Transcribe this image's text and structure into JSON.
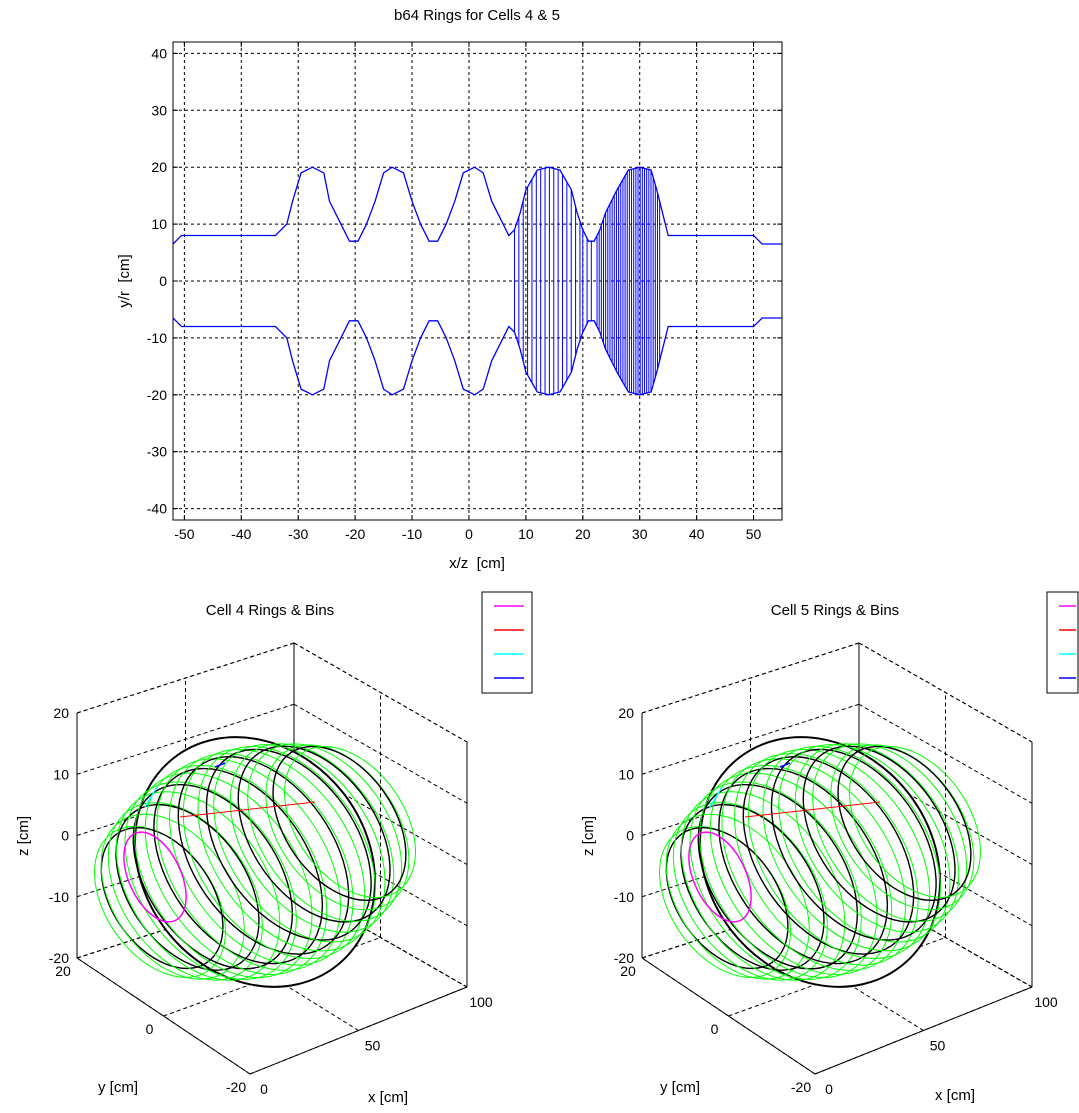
{
  "chart_data": [
    {
      "type": "line",
      "title": "b64 Rings for Cells 4 & 5",
      "xlabel": "x/z  [cm]",
      "ylabel": "y/r  [cm]",
      "xlim": [
        -52,
        55
      ],
      "ylim": [
        -42,
        42
      ],
      "grid": true,
      "xticks": [
        -50,
        -40,
        -30,
        -20,
        -10,
        0,
        10,
        20,
        30,
        40,
        50
      ],
      "yticks": [
        -40,
        -30,
        -20,
        -10,
        0,
        10,
        20,
        30,
        40
      ],
      "line_color": "#0000ff",
      "series": [
        {
          "x": [
            -52,
            -50.5,
            -34,
            -32,
            -31,
            -29.5,
            -27.5,
            -25.5,
            -24.5,
            -22.5,
            -21,
            -19.5,
            -18,
            -16.5,
            -15,
            -13.5,
            -11.5,
            -10,
            -8.5,
            -7,
            -5.5,
            -4,
            -2.5,
            -1,
            1,
            2.5,
            4,
            6,
            7,
            8,
            9,
            10,
            12,
            14,
            16,
            18,
            19,
            20,
            21,
            22,
            23,
            24,
            26,
            28,
            30,
            32,
            33,
            34,
            35,
            50,
            51.5,
            55
          ],
          "y": [
            6.5,
            8,
            8,
            10,
            14,
            19,
            20,
            19,
            14,
            10,
            7,
            7,
            10,
            14,
            19,
            20,
            19,
            14,
            10,
            7,
            7,
            10,
            14,
            19,
            20,
            19,
            14,
            10,
            8,
            9,
            12,
            16,
            19.5,
            20,
            19.5,
            16,
            12,
            9,
            7,
            7,
            9,
            12,
            16,
            19.5,
            20,
            19.5,
            16,
            12,
            8,
            8,
            6.5,
            6.5
          ]
        }
      ],
      "ring_hatching": [
        {
          "x_from": 8,
          "x_to": 19.5,
          "count": 16
        },
        {
          "x_from": 20,
          "x_to": 21.5,
          "count": 3
        },
        {
          "x_from": 22.5,
          "x_to": 33.5,
          "count": 30
        }
      ]
    },
    {
      "type": "3d-wireframe",
      "title": "Cell 4 Rings & Bins",
      "xlabel": "x [cm]",
      "ylabel": "y [cm]",
      "zlabel": "z [cm]",
      "xlim": [
        0,
        100
      ],
      "ylim": [
        -20,
        20
      ],
      "zlim": [
        -20,
        20
      ],
      "xticks": [
        0,
        50,
        100
      ],
      "yticks": [
        -20,
        0,
        20
      ],
      "zticks": [
        -20,
        -10,
        0,
        10,
        20
      ],
      "grid": true,
      "legend_placement": "top-right",
      "legend_colors": [
        "#ff00ff",
        "#ff0000",
        "#00ffff",
        "#0000ff"
      ],
      "mesh_colors": [
        "#00ff00",
        "#000000"
      ]
    },
    {
      "type": "3d-wireframe",
      "title": "Cell 5 Rings & Bins",
      "xlabel": "x [cm]",
      "ylabel": "y [cm]",
      "zlabel": "z [cm]",
      "xlim": [
        0,
        100
      ],
      "ylim": [
        -20,
        20
      ],
      "zlim": [
        -20,
        20
      ],
      "xticks": [
        0,
        50,
        100
      ],
      "yticks": [
        -20,
        0,
        20
      ],
      "zticks": [
        -20,
        -10,
        0,
        10,
        20
      ],
      "grid": true,
      "legend_placement": "top-right",
      "legend_colors": [
        "#ff00ff",
        "#ff0000",
        "#00ffff",
        "#0000ff"
      ],
      "mesh_colors": [
        "#00ff00",
        "#000000"
      ]
    }
  ]
}
